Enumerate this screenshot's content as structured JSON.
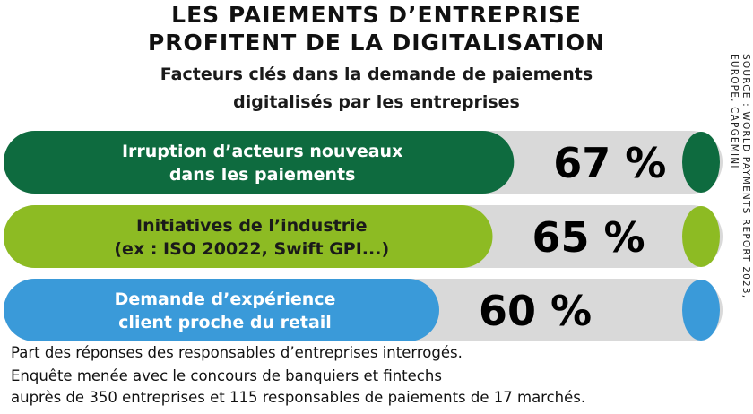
{
  "title_line1": "LES PAIEMENTS D’ENTREPRISE",
  "title_line2": "PROFITENT DE LA DIGITALISATION",
  "subtitle_line1": "Facteurs clés dans la demande de paiements",
  "subtitle_line2": "digitalisés par les entreprises",
  "source_line1": "SOURCE : WORLD PAYMENTS REPORT 2023,",
  "source_line2": "EUROPE, CAPGEMINI",
  "note_line1": "Part des réponses des responsables d’entreprises interrogés.",
  "note_line2": "Enquête menée avec le concours de banquiers et fintechs",
  "note_line3": "auprès de 350 entreprises et 115 responsables de paiements de 17 marchés.",
  "chart_data": {
    "type": "bar",
    "orientation": "horizontal",
    "unit": "%",
    "categories": [
      [
        "Irruption d’acteurs nouveaux",
        "dans les paiements"
      ],
      [
        "Initiatives de l’industrie",
        "(ex : ISO 20022, Swift GPI...)"
      ],
      [
        "Demande d’expérience",
        "client proche du retail"
      ]
    ],
    "values": [
      67,
      65,
      60
    ],
    "value_labels": [
      "67 %",
      "65 %",
      "60 %"
    ],
    "colors": [
      "#0e6b3f",
      "#8dbb23",
      "#3a9ad9"
    ],
    "track_color": "#d9d9d9",
    "xlim": [
      0,
      100
    ],
    "grid": false,
    "legend": "none"
  }
}
